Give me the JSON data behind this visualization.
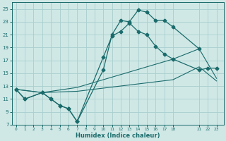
{
  "xlabel": "Humidex (Indice chaleur)",
  "bg_color": "#cfe8e6",
  "grid_color": "#a8cece",
  "line_color": "#1a6b6b",
  "xlim": [
    -0.5,
    23.8
  ],
  "ylim": [
    7,
    26
  ],
  "xticks": [
    0,
    1,
    2,
    3,
    4,
    5,
    6,
    7,
    8,
    9,
    10,
    11,
    12,
    13,
    14,
    15,
    16,
    17,
    18,
    21,
    22,
    23
  ],
  "yticks": [
    7,
    9,
    11,
    13,
    15,
    17,
    19,
    21,
    23,
    25
  ],
  "line1_x": [
    0,
    1,
    3,
    4,
    5,
    6,
    7,
    10,
    11,
    12,
    13,
    14,
    15,
    16,
    17,
    18,
    21
  ],
  "line1_y": [
    12.5,
    11,
    12,
    11,
    10,
    9.5,
    7.5,
    15.5,
    21,
    23.2,
    23,
    24.8,
    24.5,
    23.2,
    23.2,
    22.2,
    18.8
  ],
  "line2_x": [
    0,
    1,
    3,
    4,
    5,
    6,
    7,
    10,
    11,
    12,
    13,
    14,
    15,
    16,
    17,
    18,
    21,
    22,
    23
  ],
  "line2_y": [
    12.5,
    11,
    12,
    11,
    10,
    9.5,
    7.5,
    17.5,
    20.8,
    21.5,
    22.8,
    21.5,
    21,
    19.2,
    18,
    17.2,
    15.5,
    15.8,
    15.8
  ],
  "line3_x": [
    0,
    3,
    7,
    18,
    21,
    23
  ],
  "line3_y": [
    12.5,
    12,
    12.8,
    17.2,
    18.8,
    14.2
  ],
  "line4_x": [
    0,
    3,
    7,
    18,
    21,
    23
  ],
  "line4_y": [
    12.5,
    12,
    12.2,
    14.0,
    16.0,
    13.8
  ]
}
